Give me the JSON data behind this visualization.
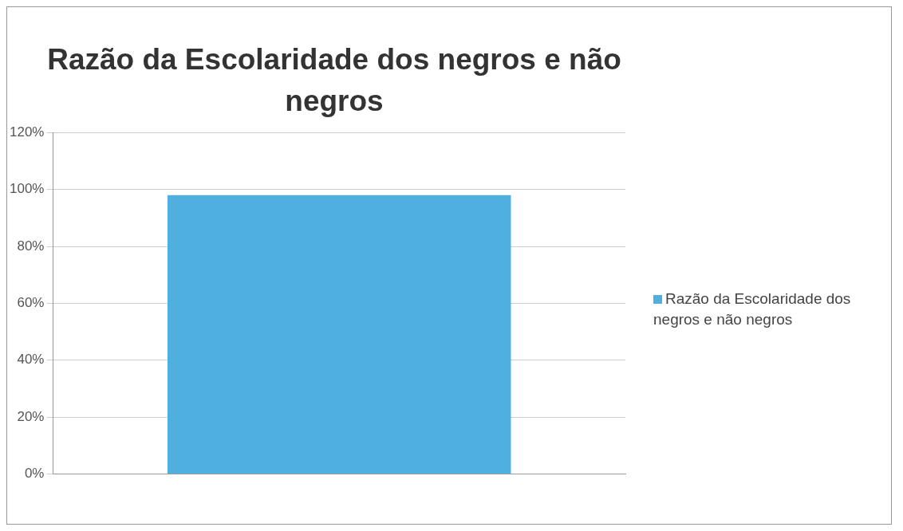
{
  "chart_data": {
    "type": "bar",
    "title": "Razão da Escolaridade dos negros e não negros",
    "categories": [
      null
    ],
    "series": [
      {
        "name": "Razão da Escolaridade dos negros e não negros",
        "color": "#4fb0e0",
        "values": [
          98
        ]
      }
    ],
    "ylim": [
      0,
      120
    ],
    "yticks": [
      {
        "value": 0,
        "label": "0%"
      },
      {
        "value": 20,
        "label": "20%"
      },
      {
        "value": 40,
        "label": "40%"
      },
      {
        "value": 60,
        "label": "60%"
      },
      {
        "value": 80,
        "label": "80%"
      },
      {
        "value": 100,
        "label": "100%"
      },
      {
        "value": 120,
        "label": "120%"
      }
    ],
    "grid": "y",
    "legend": "right"
  }
}
